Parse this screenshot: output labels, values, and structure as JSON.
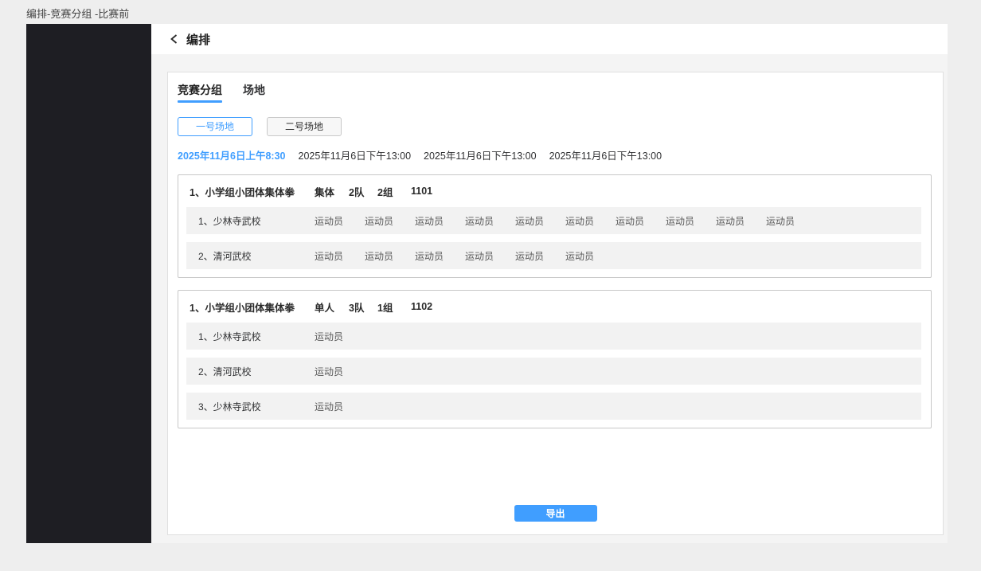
{
  "page": {
    "breadcrumb": "编排-竞赛分组 -比赛前"
  },
  "header": {
    "title": "编排",
    "back_icon": "chevron-left"
  },
  "tabs": [
    {
      "label": "竞赛分组",
      "active": true
    },
    {
      "label": "场地",
      "active": false
    }
  ],
  "venues": [
    {
      "label": "一号场地",
      "active": true
    },
    {
      "label": "二号场地",
      "active": false
    }
  ],
  "sessions": [
    {
      "label": "2025年11月6日上午8:30",
      "active": true
    },
    {
      "label": "2025年11月6日下午13:00",
      "active": false
    },
    {
      "label": "2025年11月6日下午13:00",
      "active": false
    },
    {
      "label": "2025年11月6日下午13:00",
      "active": false
    }
  ],
  "groups": [
    {
      "title": "1、小学组小团体集体拳",
      "type": "集体",
      "team_count": "2队",
      "group_count": "2组",
      "code": "1101",
      "rows": [
        {
          "name": "1、少林寺武校",
          "athletes": [
            "运动员",
            "运动员",
            "运动员",
            "运动员",
            "运动员",
            "运动员",
            "运动员",
            "运动员",
            "运动员",
            "运动员"
          ]
        },
        {
          "name": "2、清河武校",
          "athletes": [
            "运动员",
            "运动员",
            "运动员",
            "运动员",
            "运动员",
            "运动员"
          ]
        }
      ]
    },
    {
      "title": "1、小学组小团体集体拳",
      "type": "单人",
      "team_count": "3队",
      "group_count": "1组",
      "code": "1102",
      "rows": [
        {
          "name": "1、少林寺武校",
          "athletes": [
            "运动员"
          ]
        },
        {
          "name": "2、清河武校",
          "athletes": [
            "运动员"
          ]
        },
        {
          "name": "3、少林寺武校",
          "athletes": [
            "运动员"
          ]
        }
      ]
    }
  ],
  "export_button": "导出",
  "colors": {
    "accent": "#409eff",
    "sidebar": "#1e1e23",
    "row_bg": "#f2f2f2"
  }
}
